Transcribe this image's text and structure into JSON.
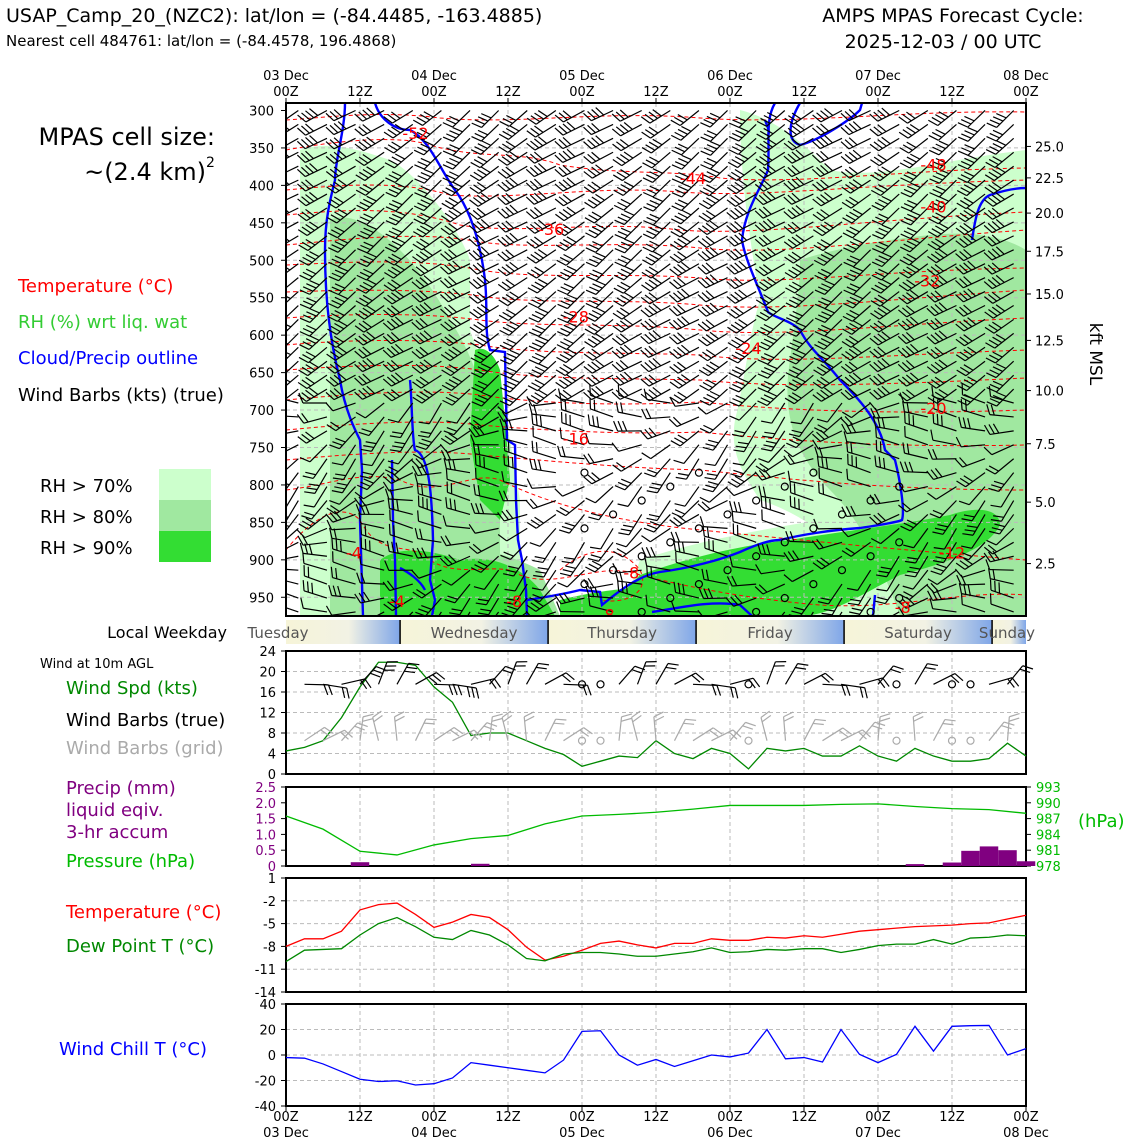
{
  "header": {
    "title_left": "USAP_Camp_20_(NZC2): lat/lon = (-84.4485, -163.4885)",
    "subtitle_left": "Nearest cell 484761: lat/lon = (-84.4578, 196.4868)",
    "title_right_1": "AMPS MPAS Forecast Cycle:",
    "title_right_2": "2025-12-03 / 00 UTC"
  },
  "legend": {
    "cell_size_label": "MPAS cell size:",
    "cell_size_value": "~(2.4 km)",
    "cell_size_exp": "2",
    "temperature": "Temperature (°C)",
    "rh": "RH (%) wrt liq. wat",
    "cloud": "Cloud/Precip outline",
    "barbs": "Wind Barbs (kts) (true)",
    "rh70": "RH > 70%",
    "rh80": "RH > 80%",
    "rh90": "RH > 90%"
  },
  "colors": {
    "temperature": "#ff0000",
    "rh_text": "#33cc33",
    "cloud": "#0000ff",
    "rh70": "#ccffcc",
    "rh80": "#a0e8a0",
    "rh90": "#33dd33",
    "precip": "#800080",
    "pressure": "#00bb00",
    "dewpoint": "#008800",
    "windchill": "#0000ff",
    "barb_grid": "#aaaaaa"
  },
  "time_axis": {
    "top_dates": [
      "03 Dec",
      "",
      "04 Dec",
      "",
      "05 Dec",
      "",
      "06 Dec",
      "",
      "07 Dec",
      "",
      "08 Dec"
    ],
    "hours": [
      "00Z",
      "12Z",
      "00Z",
      "12Z",
      "00Z",
      "12Z",
      "00Z",
      "12Z",
      "00Z",
      "12Z",
      "00Z"
    ],
    "bottom_dates": [
      "03 Dec",
      "",
      "04 Dec",
      "",
      "05 Dec",
      "",
      "06 Dec",
      "",
      "07 Dec",
      "",
      "08 Dec"
    ]
  },
  "weekday_row": {
    "label": "Local Weekday",
    "days": [
      "Tuesday",
      "Wednesday",
      "Thursday",
      "Friday",
      "Saturday",
      "Sunday"
    ]
  },
  "panel_labels": {
    "wind_heading": "Wind at 10m AGL",
    "wind_spd": "Wind Spd (kts)",
    "wind_barbs_true": "Wind Barbs (true)",
    "wind_barbs_grid": "Wind Barbs (grid)",
    "precip_1": "Precip (mm)",
    "precip_2": "liquid eqiv.",
    "precip_3": "3-hr accum",
    "pressure": "Pressure (hPa)",
    "pressure_unit": "(hPa)",
    "temperature": "Temperature (°C)",
    "dewpoint": "Dew Point T (°C)",
    "windchill": "Wind Chill T (°C)",
    "kft_label": "kft MSL"
  },
  "chart_data": [
    {
      "type": "heatmap",
      "description": "Time-height cross section",
      "x_hours": [
        0,
        120
      ],
      "ylabel": "",
      "y_ticks_hpa": [
        300,
        350,
        400,
        450,
        500,
        550,
        600,
        650,
        700,
        750,
        800,
        850,
        900,
        950
      ],
      "ylim_hpa": [
        290,
        975
      ],
      "kft_ticks": [
        "25.0",
        "22.5",
        "20.0",
        "17.5",
        "15.0",
        "12.5",
        "10.0",
        "7.5",
        "5.0",
        "2.5"
      ],
      "kft_tick_hpa": [
        348,
        390,
        437,
        488,
        545,
        607,
        674,
        745,
        823,
        905
      ],
      "isotherm_labels": [
        {
          "text": "-52",
          "hour": 21,
          "hpa": 330
        },
        {
          "text": "-44",
          "hour": 66,
          "hpa": 390
        },
        {
          "text": "-48",
          "hour": 105,
          "hpa": 372
        },
        {
          "text": "-40",
          "hour": 105,
          "hpa": 428
        },
        {
          "text": "-36",
          "hour": 43,
          "hpa": 458
        },
        {
          "text": "-32",
          "hour": 104,
          "hpa": 527
        },
        {
          "text": "-28",
          "hour": 47,
          "hpa": 575
        },
        {
          "text": "-24",
          "hour": 75,
          "hpa": 617
        },
        {
          "text": "-20",
          "hour": 105,
          "hpa": 697
        },
        {
          "text": "-16",
          "hour": 47,
          "hpa": 738
        },
        {
          "text": "-12",
          "hour": 108,
          "hpa": 890
        },
        {
          "text": "-8",
          "hour": 56,
          "hpa": 917
        },
        {
          "text": "-4",
          "hour": 11,
          "hpa": 890
        },
        {
          "text": "-4",
          "hour": 18,
          "hpa": 955
        },
        {
          "text": "-8",
          "hour": 37,
          "hpa": 955
        },
        {
          "text": "-8",
          "hour": 52,
          "hpa": 973
        },
        {
          "text": "-8",
          "hour": 100,
          "hpa": 963
        }
      ]
    },
    {
      "type": "line",
      "title": "",
      "x_hours": [
        0,
        3,
        6,
        9,
        12,
        15,
        18,
        21,
        24,
        27,
        30,
        33,
        36,
        39,
        42,
        45,
        48,
        51,
        54,
        57,
        60,
        63,
        66,
        69,
        72,
        75,
        78,
        81,
        84,
        87,
        90,
        93,
        96,
        99,
        102,
        105,
        108,
        111,
        114,
        117,
        120
      ],
      "series": [
        {
          "name": "Wind Spd (kts)",
          "values": [
            4.5,
            5.2,
            6.5,
            11,
            17,
            21.8,
            21.8,
            21.2,
            17,
            14,
            7.5,
            8,
            8,
            6.5,
            5,
            3.8,
            1.5,
            2.5,
            3.5,
            3.2,
            6.5,
            4,
            3,
            5,
            4,
            1,
            5,
            4.5,
            5,
            3.5,
            3.5,
            5.5,
            3.5,
            2.5,
            5,
            3.5,
            2.5,
            2.5,
            3,
            6,
            3.5
          ]
        }
      ],
      "ylim": [
        0,
        24
      ],
      "yticks": [
        0,
        4,
        8,
        12,
        16,
        20,
        24
      ]
    },
    {
      "type": "bar",
      "title": "",
      "series": [
        {
          "name": "Precip (mm)",
          "x_hours": [
            12,
            31.5,
            102,
            108,
            111,
            114,
            117,
            120
          ],
          "values": [
            0.12,
            0.07,
            0.06,
            0.11,
            0.48,
            0.62,
            0.5,
            0.15
          ]
        },
        {
          "name": "Pressure (hPa)",
          "x_hours": [
            0,
            6,
            12,
            18,
            24,
            30,
            36,
            42,
            48,
            54,
            60,
            66,
            72,
            78,
            84,
            90,
            96,
            102,
            108,
            114,
            120
          ],
          "values": [
            987.5,
            985,
            980.8,
            980.1,
            982,
            983.2,
            983.8,
            986,
            987.5,
            987.8,
            988.2,
            988.8,
            989.5,
            989.5,
            989.5,
            989.7,
            989.8,
            989.3,
            988.9,
            988.7,
            988.0
          ]
        }
      ],
      "y_left_ticks": [
        "0",
        "0.5",
        "1.0",
        "1.5",
        "2.0",
        "2.5"
      ],
      "y_right_ticks": [
        "978",
        "981",
        "984",
        "987",
        "990",
        "993"
      ],
      "ylim_left": [
        0,
        2.5
      ],
      "ylim_right": [
        978,
        993
      ]
    },
    {
      "type": "line",
      "title": "",
      "x_hours": [
        0,
        3,
        6,
        9,
        12,
        15,
        18,
        21,
        24,
        27,
        30,
        33,
        36,
        39,
        42,
        45,
        48,
        51,
        54,
        57,
        60,
        63,
        66,
        69,
        72,
        75,
        78,
        81,
        84,
        87,
        90,
        93,
        96,
        99,
        102,
        105,
        108,
        111,
        114,
        117,
        120
      ],
      "series": [
        {
          "name": "Temperature (°C)",
          "values": [
            -8,
            -7,
            -7,
            -6,
            -3.2,
            -2.5,
            -2.3,
            -3.8,
            -5.5,
            -4.8,
            -3.8,
            -4.2,
            -5.8,
            -8.1,
            -9.8,
            -9.3,
            -8.5,
            -7.6,
            -7.3,
            -7.8,
            -8.2,
            -7.6,
            -7.6,
            -7.0,
            -7.2,
            -7.2,
            -6.8,
            -6.9,
            -6.6,
            -6.8,
            -6.4,
            -6.0,
            -5.8,
            -5.6,
            -5.4,
            -5.3,
            -5.2,
            -5.0,
            -4.9,
            -4.4,
            -3.9
          ]
        },
        {
          "name": "Dew Point T (°C)",
          "values": [
            -10,
            -8.5,
            -8.4,
            -8.3,
            -6.5,
            -5.0,
            -4.2,
            -5.4,
            -6.8,
            -7.1,
            -5.9,
            -6.5,
            -7.8,
            -9.6,
            -9.9,
            -9.0,
            -8.8,
            -8.8,
            -9.0,
            -9.3,
            -9.3,
            -9.0,
            -8.7,
            -8.2,
            -8.8,
            -8.7,
            -8.4,
            -8.5,
            -8.3,
            -8.3,
            -8.8,
            -8.4,
            -7.9,
            -7.7,
            -7.7,
            -7.1,
            -7.7,
            -6.9,
            -6.8,
            -6.5,
            -6.6
          ]
        }
      ],
      "ylim": [
        -14,
        1
      ],
      "yticks": [
        -14,
        -11,
        -8,
        -5,
        -2,
        1
      ]
    },
    {
      "type": "line",
      "title": "",
      "x_hours": [
        0,
        3,
        6,
        9,
        12,
        15,
        18,
        21,
        24,
        27,
        30,
        33,
        36,
        39,
        42,
        45,
        48,
        51,
        54,
        57,
        60,
        63,
        66,
        69,
        72,
        75,
        78,
        81,
        84,
        87,
        90,
        93,
        96,
        99,
        102,
        105,
        108,
        111,
        114,
        117,
        120
      ],
      "series": [
        {
          "name": "Wind Chill T (°C)",
          "values": [
            -2,
            -2.5,
            -7,
            -13,
            -19,
            -20.8,
            -20.2,
            -23.5,
            -22.5,
            -18,
            -6,
            -8,
            -10,
            -12,
            -14,
            -4,
            18.5,
            19,
            0,
            -8,
            -3.5,
            -9,
            -4.5,
            0,
            -1.5,
            1.5,
            20,
            -3,
            -2,
            -5.5,
            20,
            0.5,
            -6,
            0.5,
            22.5,
            3,
            22.5,
            23,
            23.2,
            0,
            5
          ]
        }
      ],
      "ylim": [
        -40,
        40
      ],
      "yticks": [
        -40,
        -20,
        0,
        20,
        40
      ]
    }
  ]
}
